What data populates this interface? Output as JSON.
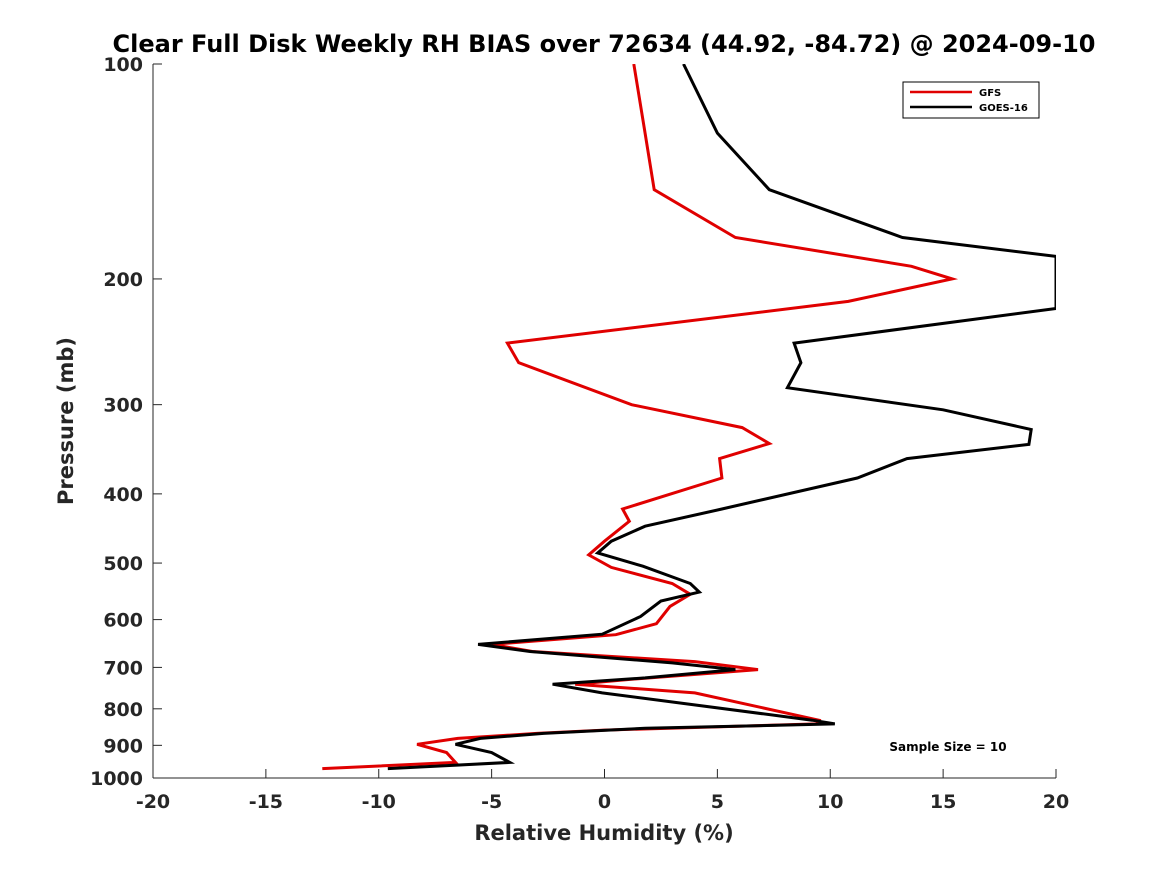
{
  "chart_data": {
    "type": "line",
    "title": "Clear Full Disk Weekly RH BIAS over 72634 (44.92, -84.72) @ 2024-09-10",
    "xlabel": "Relative Humidity (%)",
    "ylabel": "Pressure (mb)",
    "xlim": [
      -20,
      20
    ],
    "ylim": [
      100,
      1000
    ],
    "y_scale": "log",
    "y_reversed": true,
    "x_ticks": [
      -20,
      -15,
      -10,
      -5,
      0,
      5,
      10,
      15,
      20
    ],
    "x_tick_labels": [
      "-20",
      "-15",
      "-10",
      "-5",
      "0",
      "5",
      "10",
      "15",
      "20"
    ],
    "y_ticks": [
      100,
      200,
      300,
      400,
      500,
      600,
      700,
      800,
      900,
      1000
    ],
    "y_tick_labels": [
      "100",
      "200",
      "300",
      "400",
      "500",
      "600",
      "700",
      "800",
      "900",
      "1000"
    ],
    "grid": false,
    "legend_position": "top-right",
    "annotation": "Sample Size = 10",
    "series": [
      {
        "name": "GFS",
        "color": "#e00000",
        "points": [
          [
            1.3,
            100
          ],
          [
            1.8,
            125
          ],
          [
            2.2,
            150
          ],
          [
            5.8,
            175
          ],
          [
            13.6,
            192
          ],
          [
            15.4,
            200
          ],
          [
            10.8,
            215
          ],
          [
            -4.3,
            246
          ],
          [
            -3.8,
            262
          ],
          [
            1.2,
            300
          ],
          [
            6.1,
            323
          ],
          [
            7.3,
            340
          ],
          [
            5.1,
            357
          ],
          [
            5.2,
            380
          ],
          [
            0.8,
            420
          ],
          [
            1.1,
            437
          ],
          [
            0.0,
            466
          ],
          [
            -0.7,
            487
          ],
          [
            0.3,
            507
          ],
          [
            3.0,
            534
          ],
          [
            3.8,
            553
          ],
          [
            2.9,
            575
          ],
          [
            2.3,
            608
          ],
          [
            0.5,
            630
          ],
          [
            -5.0,
            650
          ],
          [
            -3.2,
            665
          ],
          [
            4.0,
            687
          ],
          [
            6.8,
            705
          ],
          [
            1.0,
            728
          ],
          [
            -1.3,
            739
          ],
          [
            4.0,
            760
          ],
          [
            9.5,
            830
          ],
          [
            9.4,
            840
          ],
          [
            0.0,
            857
          ],
          [
            -3.0,
            866
          ],
          [
            -6.5,
            880
          ],
          [
            -8.3,
            897
          ],
          [
            -7.0,
            921
          ],
          [
            -6.6,
            951
          ],
          [
            -12.5,
            970
          ]
        ]
      },
      {
        "name": "GOES-16",
        "color": "#000000",
        "points": [
          [
            3.5,
            100
          ],
          [
            5.0,
            125
          ],
          [
            7.3,
            150
          ],
          [
            13.2,
            175
          ],
          [
            20.0,
            186
          ],
          [
            20.0,
            220
          ],
          [
            8.4,
            246
          ],
          [
            8.7,
            262
          ],
          [
            8.1,
            284
          ],
          [
            15.0,
            305
          ],
          [
            18.9,
            325
          ],
          [
            18.8,
            341
          ],
          [
            13.4,
            357
          ],
          [
            11.2,
            380
          ],
          [
            5.2,
            420
          ],
          [
            1.8,
            444
          ],
          [
            0.3,
            466
          ],
          [
            -0.3,
            484
          ],
          [
            1.7,
            505
          ],
          [
            3.8,
            534
          ],
          [
            4.2,
            549
          ],
          [
            2.5,
            565
          ],
          [
            1.6,
            594
          ],
          [
            -0.1,
            629
          ],
          [
            -5.6,
            650
          ],
          [
            -3.3,
            665
          ],
          [
            3.0,
            690
          ],
          [
            5.8,
            705
          ],
          [
            1.8,
            724
          ],
          [
            -2.3,
            739
          ],
          [
            -0.1,
            760
          ],
          [
            9.2,
            830
          ],
          [
            10.2,
            840
          ],
          [
            1.8,
            852
          ],
          [
            -2.7,
            866
          ],
          [
            -5.5,
            880
          ],
          [
            -6.6,
            897
          ],
          [
            -5.0,
            921
          ],
          [
            -4.2,
            951
          ],
          [
            -9.6,
            970
          ]
        ]
      }
    ]
  }
}
